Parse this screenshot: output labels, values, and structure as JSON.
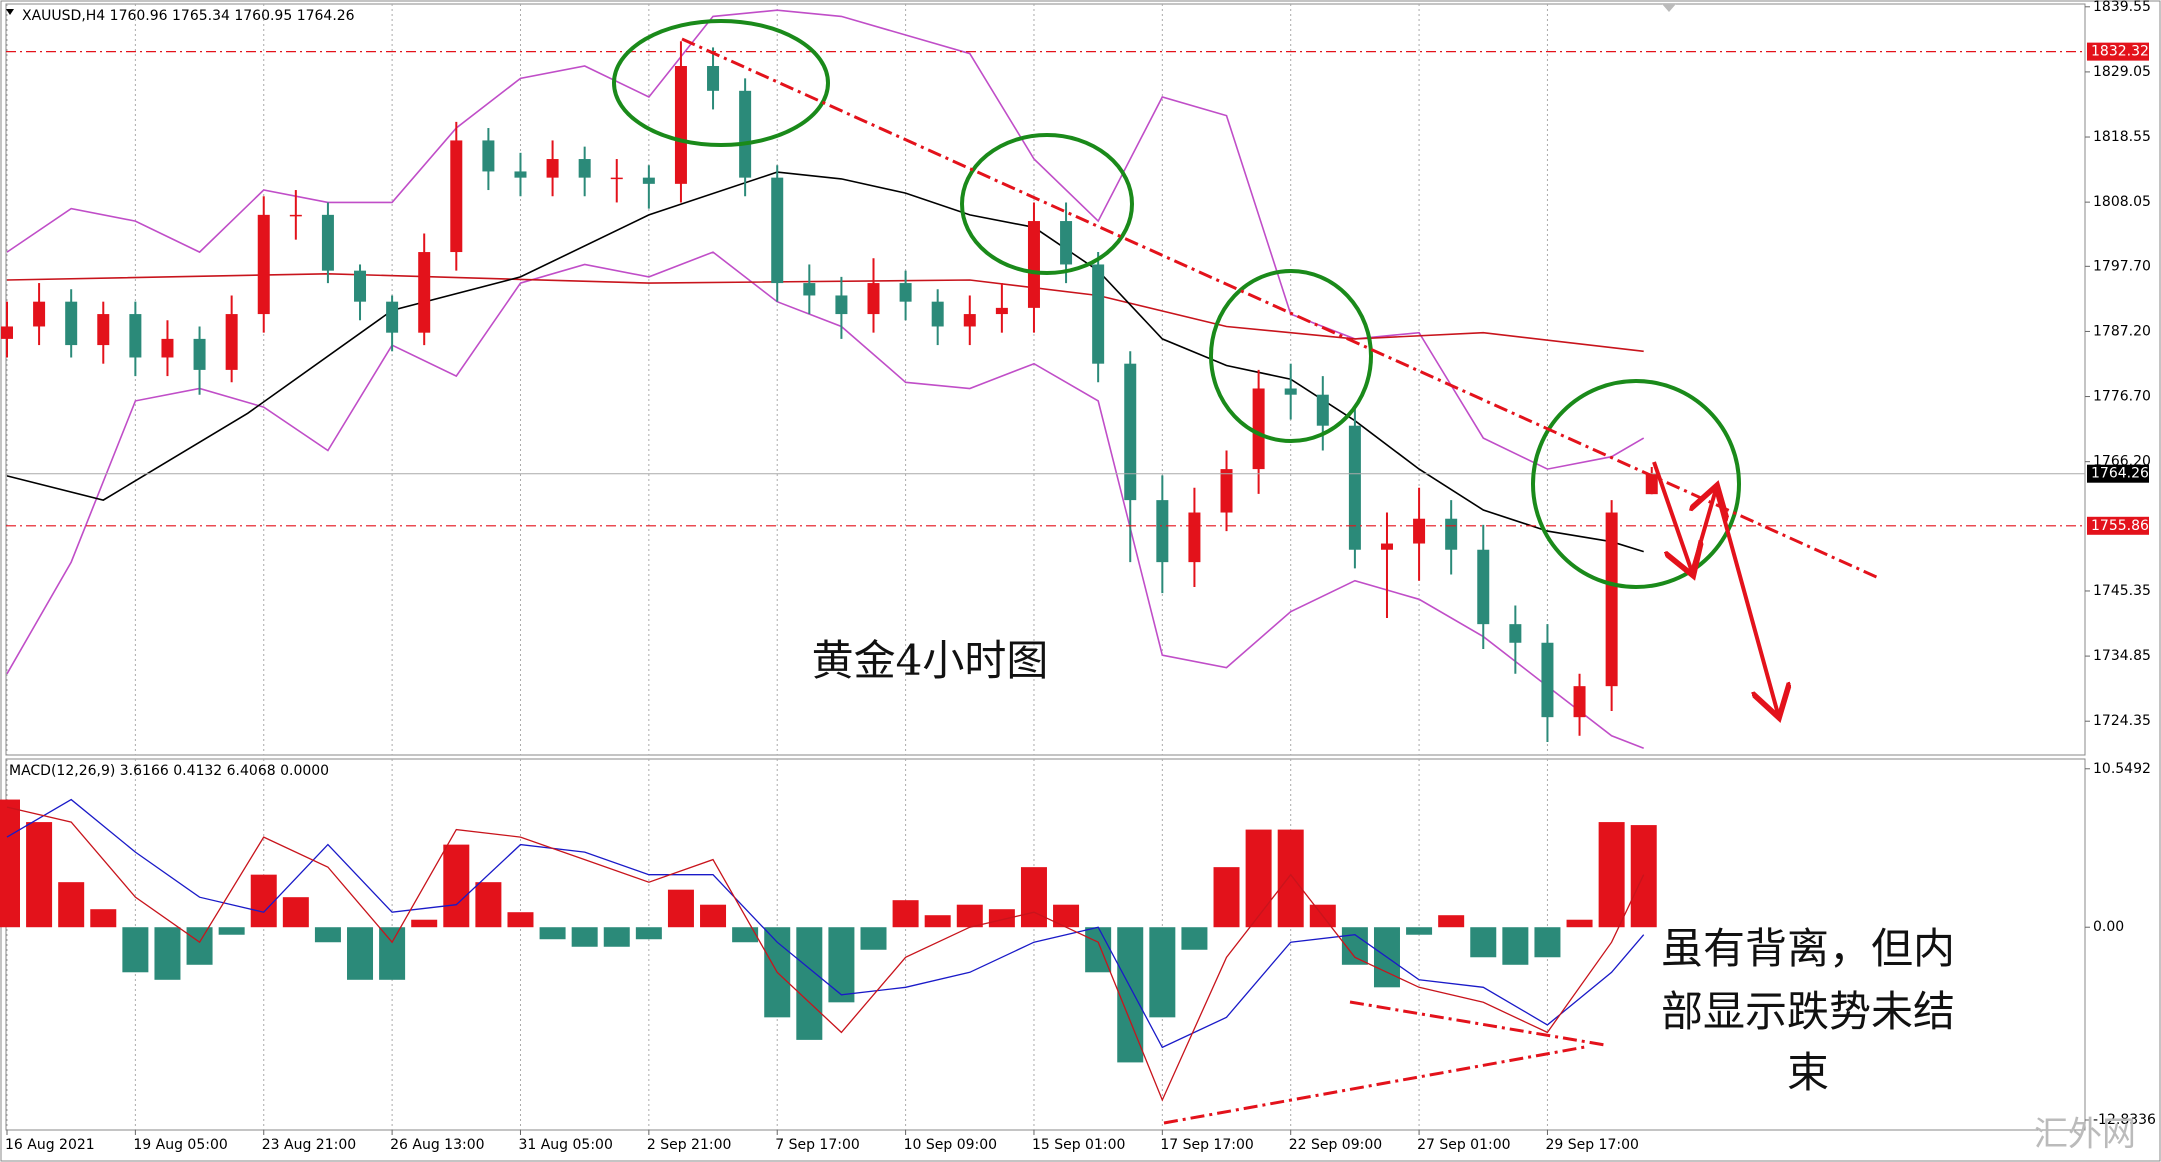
{
  "chart_data": {
    "type": "candlestick",
    "header": "XAUUSD,H4  1760.96 1765.34 1760.95 1764.26",
    "xlim": [
      0,
      259
    ],
    "xticks": [
      {
        "value": 0,
        "label": "16 Aug 2021"
      },
      {
        "value": 16,
        "label": "19 Aug 05:00"
      },
      {
        "value": 32,
        "label": "23 Aug 21:00"
      },
      {
        "value": 48,
        "label": "26 Aug 13:00"
      },
      {
        "value": 64,
        "label": "31 Aug 05:00"
      },
      {
        "value": 80,
        "label": "2 Sep 21:00"
      },
      {
        "value": 96,
        "label": "7 Sep 17:00"
      },
      {
        "value": 112,
        "label": "10 Sep 09:00"
      },
      {
        "value": 128,
        "label": "15 Sep 01:00"
      },
      {
        "value": 144,
        "label": "17 Sep 17:00"
      },
      {
        "value": 160,
        "label": "22 Sep 09:00"
      },
      {
        "value": 176,
        "label": "27 Sep 01:00"
      },
      {
        "value": 192,
        "label": "29 Sep 17:00"
      }
    ],
    "grid": "x",
    "price": {
      "ylim": [
        1718.9,
        1840.0
      ],
      "yticks": [
        1839.55,
        1829.05,
        1818.55,
        1808.05,
        {
          "value": 1797.7,
          "label": "1797.70"
        },
        {
          "value": 1787.2,
          "label": "1787.20"
        },
        {
          "value": 1776.7,
          "label": "1776.70"
        },
        {
          "value": 1766.2,
          "label": "1766.20"
        },
        1745.35,
        1734.85,
        1724.35
      ],
      "candles": {
        "up_color": "#e3121b",
        "down_color": "#2b8a79",
        "x": [
          0,
          4,
          8,
          12,
          16,
          20,
          24,
          28,
          32,
          36,
          40,
          44,
          48,
          52,
          56,
          60,
          64,
          68,
          72,
          76,
          80,
          84,
          88,
          92,
          96,
          100,
          104,
          108,
          112,
          116,
          120,
          124,
          128,
          132,
          136,
          140,
          144,
          148,
          152,
          156,
          160,
          164,
          168,
          172,
          176,
          180,
          184,
          188,
          192,
          196,
          200,
          205
        ],
        "open": [
          1786,
          1788,
          1792,
          1785,
          1790,
          1783,
          1786,
          1781,
          1790,
          1806,
          1806,
          1797,
          1792,
          1787,
          1800,
          1818,
          1813,
          1812,
          1815,
          1812,
          1812,
          1811,
          1830,
          1826,
          1812,
          1795,
          1793,
          1790,
          1795,
          1792,
          1788,
          1790,
          1791,
          1805,
          1798,
          1782,
          1760,
          1750,
          1758,
          1765,
          1778,
          1777,
          1772,
          1752,
          1753,
          1757,
          1752,
          1740,
          1737,
          1725,
          1730,
          1760.96
        ],
        "high": [
          1792,
          1795,
          1794,
          1792,
          1792,
          1789,
          1788,
          1793,
          1809,
          1810,
          1808,
          1798,
          1793,
          1803,
          1821,
          1820,
          1816,
          1818,
          1817,
          1815,
          1814,
          1834,
          1833,
          1828,
          1814,
          1798,
          1796,
          1799,
          1797,
          1794,
          1793,
          1795,
          1808,
          1808,
          1800,
          1784,
          1764,
          1762,
          1768,
          1781,
          1782,
          1780,
          1775,
          1758,
          1762,
          1760,
          1756,
          1743,
          1740,
          1732,
          1760,
          1765.34
        ],
        "low": [
          1783,
          1785,
          1783,
          1782,
          1780,
          1780,
          1777,
          1779,
          1787,
          1802,
          1795,
          1789,
          1784,
          1785,
          1797,
          1810,
          1809,
          1809,
          1809,
          1808,
          1807,
          1808,
          1823,
          1809,
          1792,
          1790,
          1786,
          1787,
          1789,
          1785,
          1785,
          1787,
          1787,
          1795,
          1779,
          1750,
          1745,
          1746,
          1755,
          1761,
          1773,
          1768,
          1749,
          1741,
          1747,
          1748,
          1736,
          1732,
          1721,
          1722,
          1726,
          1760.95
        ],
        "close": [
          1788,
          1792,
          1785,
          1790,
          1783,
          1786,
          1781,
          1790,
          1806,
          1806,
          1797,
          1792,
          1787,
          1800,
          1818,
          1813,
          1812,
          1815,
          1812,
          1812,
          1811,
          1830,
          1826,
          1812,
          1795,
          1793,
          1790,
          1795,
          1792,
          1788,
          1790,
          1791,
          1805,
          1798,
          1782,
          1760,
          1750,
          1758,
          1765,
          1778,
          1777,
          1772,
          1752,
          1753,
          1757,
          1752,
          1740,
          1737,
          1725,
          1730,
          1758,
          1764.26
        ]
      },
      "lines": [
        {
          "color": "#c04ec8",
          "x": [
            0,
            8,
            16,
            24,
            32,
            40,
            48,
            56,
            64,
            72,
            80,
            88,
            96,
            104,
            112,
            120,
            128,
            136,
            144,
            152,
            160,
            168,
            176,
            184,
            192,
            200,
            204
          ],
          "values": [
            1800,
            1807,
            1805,
            1800,
            1810,
            1808,
            1808,
            1820,
            1828,
            1830,
            1825,
            1838,
            1839,
            1838,
            1835,
            1832,
            1815,
            1805,
            1825,
            1822,
            1790,
            1786,
            1787,
            1770,
            1765,
            1767,
            1770
          ]
        },
        {
          "color": "#c04ec8",
          "x": [
            0,
            8,
            16,
            24,
            32,
            40,
            48,
            56,
            64,
            72,
            80,
            88,
            96,
            104,
            112,
            120,
            128,
            136,
            144,
            152,
            160,
            168,
            176,
            184,
            192,
            200,
            204
          ],
          "values": [
            1732,
            1750,
            1776,
            1778,
            1775,
            1768,
            1785,
            1780,
            1795,
            1798,
            1796,
            1800,
            1792,
            1788,
            1779,
            1778,
            1782,
            1776,
            1735,
            1733,
            1742,
            1747,
            1744,
            1738,
            1730,
            1722,
            1720
          ]
        },
        {
          "color": "#c8141c",
          "x": [
            0,
            40,
            80,
            120,
            136,
            152,
            168,
            184,
            204
          ],
          "values": [
            1795.5,
            1796.5,
            1795,
            1795.5,
            1793,
            1788,
            1786,
            1787,
            1784
          ]
        },
        {
          "color": "#000000",
          "x": [
            0,
            12,
            30,
            48,
            64,
            80,
            96,
            104,
            112,
            120,
            128,
            136,
            144,
            152,
            160,
            168,
            176,
            184,
            192,
            200,
            204
          ],
          "values": [
            1763.9,
            1760,
            1774,
            1790.6,
            1796,
            1806,
            1812.9,
            1811.8,
            1809.5,
            1806,
            1804,
            1797,
            1786,
            1781.7,
            1779.5,
            1772.8,
            1765,
            1758.4,
            1755,
            1753.3,
            1751.7
          ]
        }
      ],
      "levels": [
        {
          "value": 1832.32,
          "color": "#e3121b",
          "dashed": true
        },
        {
          "value": 1764.26,
          "color": "#000000",
          "dashed": false
        },
        {
          "value": 1755.86,
          "color": "#e3121b",
          "dashed": true
        }
      ]
    },
    "macd": {
      "label": "MACD(12,26,9) 3.6166 0.4132 6.4068 0.0000",
      "ylim": [
        -13.5,
        11.2
      ],
      "yticks": [
        10.5492,
        {
          "value": 0,
          "label": "0.00"
        },
        -12.8336
      ],
      "histogram": {
        "pos_color": "#e3121b",
        "neg_color": "#2b8a79",
        "x": [
          0,
          4,
          8,
          12,
          16,
          20,
          24,
          28,
          32,
          36,
          40,
          44,
          48,
          52,
          56,
          60,
          64,
          68,
          72,
          76,
          80,
          84,
          88,
          92,
          96,
          100,
          104,
          108,
          112,
          116,
          120,
          124,
          128,
          132,
          136,
          140,
          144,
          148,
          152,
          156,
          160,
          164,
          168,
          172,
          176,
          180,
          184,
          188,
          192,
          196,
          200,
          204
        ],
        "values": [
          8.5,
          7,
          3,
          1.2,
          -3,
          -3.5,
          -2.5,
          -0.5,
          3.5,
          2,
          -1,
          -3.5,
          -3.5,
          0.5,
          5.5,
          3,
          1,
          -0.8,
          -1.3,
          -1.3,
          -0.8,
          2.5,
          1.5,
          -1,
          -6,
          -7.5,
          -5,
          -1.5,
          1.8,
          0.8,
          1.5,
          1.2,
          4,
          1.5,
          -3,
          -9,
          -6,
          -1.5,
          4,
          6.5,
          6.5,
          1.5,
          -2.5,
          -4,
          -0.5,
          0.8,
          -2,
          -2.5,
          -2,
          0.5,
          7,
          6.8
        ]
      },
      "lines": [
        {
          "color": "#1a1ac8",
          "x": [
            0,
            8,
            16,
            24,
            32,
            40,
            48,
            56,
            64,
            72,
            80,
            88,
            96,
            104,
            112,
            120,
            128,
            136,
            144,
            152,
            160,
            168,
            176,
            184,
            192,
            200,
            204
          ],
          "values": [
            6,
            8.5,
            5,
            2,
            1,
            5.5,
            1,
            1.5,
            5.5,
            5,
            3.5,
            3.5,
            -1,
            -4.5,
            -4,
            -3,
            -1,
            0,
            -8,
            -6,
            -1,
            -0.5,
            -3.5,
            -4,
            -6.5,
            -3,
            -0.5
          ]
        },
        {
          "color": "#c8141c",
          "x": [
            0,
            8,
            16,
            24,
            32,
            40,
            48,
            56,
            64,
            72,
            80,
            88,
            96,
            104,
            112,
            120,
            128,
            136,
            144,
            152,
            160,
            168,
            176,
            184,
            192,
            200,
            204
          ],
          "values": [
            8,
            7,
            2,
            -1,
            6,
            4,
            -1,
            6.5,
            6,
            4.5,
            3,
            4.5,
            -3,
            -7,
            -2,
            0,
            1,
            -1,
            -11.5,
            -2,
            3.5,
            -2,
            -4,
            -5,
            -7,
            -1,
            3.5
          ]
        }
      ]
    },
    "annotations": [
      "黄金4小时图",
      "虽有背离，但内",
      "部显示跌势未结",
      "束"
    ],
    "watermark": "汇外网"
  }
}
